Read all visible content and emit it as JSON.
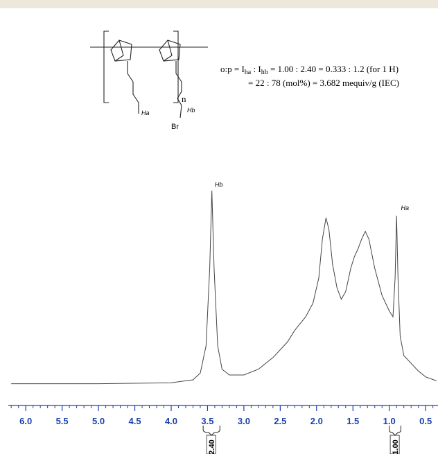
{
  "structure": {
    "labels": {
      "n": "n",
      "ha": "Ha",
      "hb": "Hb",
      "br": "Br"
    },
    "formula": {
      "line1": [
        "o:p = I",
        "ha",
        " : I",
        "hb",
        " = 1.00 : 2.40 = 0.333 : 1.2 (for 1 H)"
      ],
      "line2": "= 22 : 78 (mol%) = 3.682 mequiv/g (IEC)"
    }
  },
  "chart_data": {
    "type": "line",
    "color": "#444444",
    "axis_color": "#1a3fb0",
    "xlim": [
      6.24,
      0.33
    ],
    "ylim": [
      0,
      100
    ],
    "xticks": [
      {
        "value": 6,
        "label": "6.0"
      },
      5.5,
      {
        "value": 5,
        "label": "5.0"
      },
      4.5,
      {
        "value": 4,
        "label": "4.0"
      },
      3.5,
      {
        "value": 3,
        "label": "3.0"
      },
      2.5,
      {
        "value": 2,
        "label": "2.0"
      },
      1.5,
      {
        "value": 1,
        "label": "1.0"
      },
      0.5
    ],
    "minor_xticks": [
      6.2,
      6.1,
      5.9,
      5.8,
      5.7,
      5.6,
      5.4,
      5.3,
      5.2,
      5.1,
      4.9,
      4.8,
      4.7,
      4.6,
      4.4,
      4.3,
      4.2,
      4.1,
      3.9,
      3.8,
      3.7,
      3.6,
      3.4,
      3.3,
      3.2,
      3.1,
      2.9,
      2.8,
      2.7,
      2.6,
      2.4,
      2.3,
      2.2,
      2.1,
      1.9,
      1.8,
      1.7,
      1.6,
      1.4,
      1.3,
      1.2,
      1.1,
      0.9,
      0.8,
      0.7,
      0.6,
      0.4
    ],
    "x": [
      6.2,
      5.0,
      4.0,
      3.7,
      3.6,
      3.52,
      3.47,
      3.44,
      3.41,
      3.36,
      3.3,
      3.2,
      3.0,
      2.8,
      2.6,
      2.4,
      2.3,
      2.15,
      2.05,
      1.97,
      1.92,
      1.87,
      1.83,
      1.78,
      1.72,
      1.66,
      1.6,
      1.57,
      1.53,
      1.48,
      1.43,
      1.38,
      1.33,
      1.28,
      1.2,
      1.1,
      1.0,
      0.95,
      0.92,
      0.9,
      0.88,
      0.85,
      0.8,
      0.7,
      0.6,
      0.5,
      0.35
    ],
    "values": [
      0.5,
      0.5,
      1,
      2.5,
      6,
      20,
      60,
      100,
      60,
      20,
      8,
      5,
      5,
      8,
      14,
      22,
      28,
      35,
      42,
      55,
      75,
      86,
      80,
      62,
      50,
      44,
      48,
      53,
      60,
      66,
      70,
      75,
      79,
      75,
      60,
      46,
      38,
      35,
      55,
      87,
      55,
      25,
      15,
      11,
      7,
      4,
      2
    ],
    "annotations": [
      {
        "text": "Hb",
        "x": 3.4,
        "y": 102
      },
      {
        "text": "Ha",
        "x": 0.84,
        "y": 90
      }
    ],
    "integrals": [
      {
        "from": 3.56,
        "to": 3.33,
        "value": 2.4,
        "label": "2.40"
      },
      {
        "from": 1.0,
        "to": 0.84,
        "value": 1,
        "label": "1.00"
      }
    ]
  }
}
